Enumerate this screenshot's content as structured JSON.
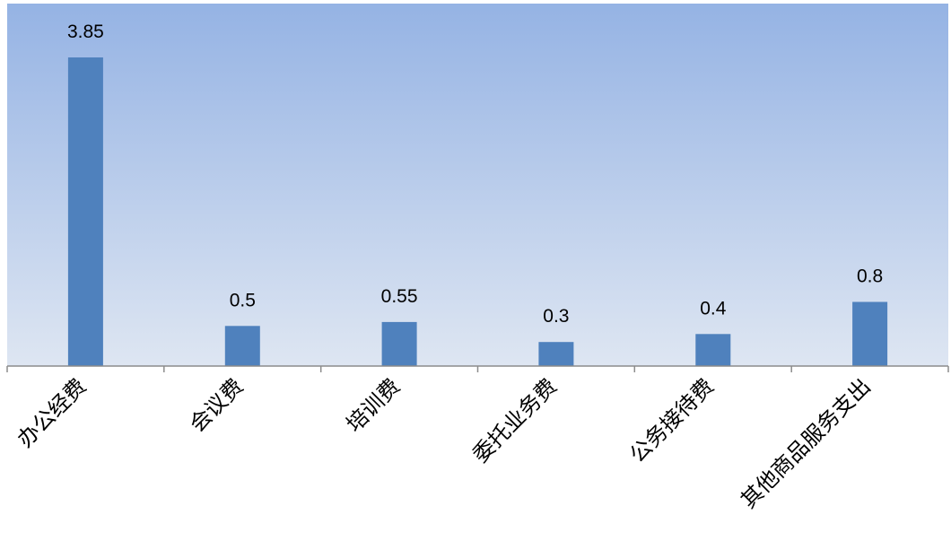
{
  "chart_data": {
    "type": "bar",
    "title": "",
    "xlabel": "",
    "ylabel": "",
    "categories": [
      "办公经费",
      "会议费",
      "培训费",
      "委托业务费",
      "公务接待费",
      "其他商品服务支出"
    ],
    "series": [
      {
        "values": [
          3.85,
          0.5,
          0.55,
          0.3,
          0.4,
          0.8
        ]
      }
    ],
    "data_labels": [
      "3.85",
      "0.5",
      "0.55",
      "0.3",
      "0.4",
      "0.8"
    ],
    "ylim": [
      0,
      4.5
    ],
    "grid": false,
    "legend": "none",
    "colors": {
      "bar": "#4f81bd",
      "plot_gradient_top": "#95b3e4",
      "plot_gradient_bottom": "#dee6f2",
      "axis": "#8c8c8c",
      "text": "#000000"
    }
  }
}
